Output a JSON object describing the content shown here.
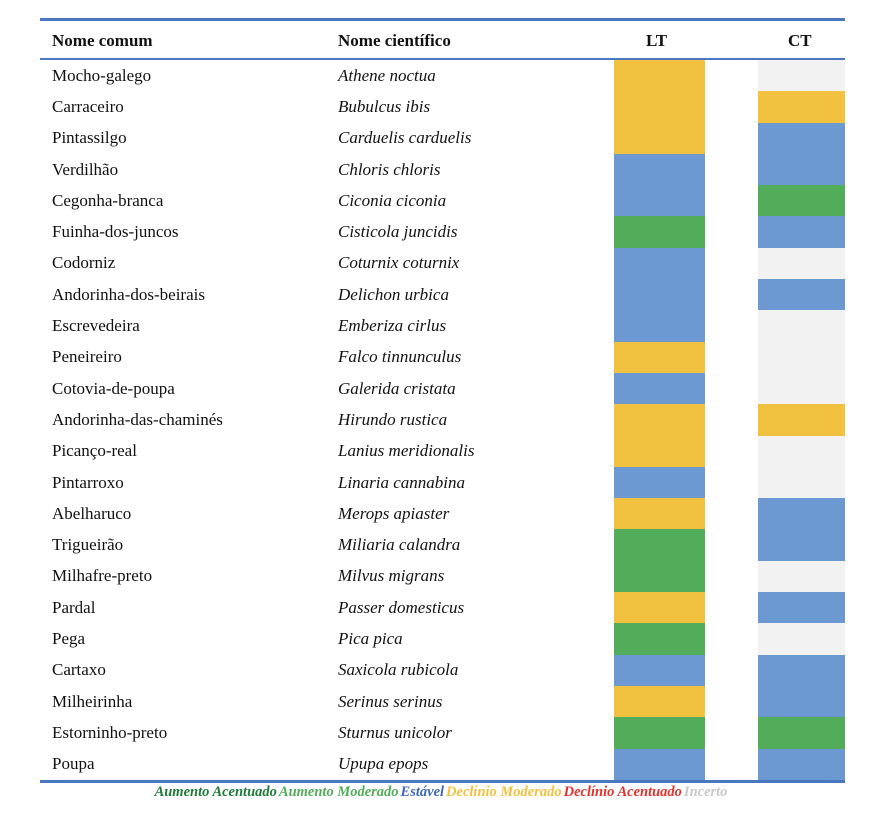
{
  "table": {
    "headers": {
      "common": "Nome comum",
      "scientific": "Nome científico",
      "lt": "LT",
      "ct": "CT"
    },
    "rows": [
      {
        "common": "Mocho-galego",
        "scientific": "Athene noctua",
        "lt": "Declínio Moderado",
        "ct": "Incerto"
      },
      {
        "common": "Carraceiro",
        "scientific": "Bubulcus ibis",
        "lt": "Declínio Moderado",
        "ct": "Declínio Moderado"
      },
      {
        "common": "Pintassilgo",
        "scientific": "Carduelis carduelis",
        "lt": "Declínio Moderado",
        "ct": "Estável"
      },
      {
        "common": "Verdilhão",
        "scientific": "Chloris chloris",
        "lt": "Estável",
        "ct": "Estável"
      },
      {
        "common": "Cegonha-branca",
        "scientific": "Ciconia ciconia",
        "lt": "Estável",
        "ct": "Aumento Moderado"
      },
      {
        "common": "Fuinha-dos-juncos",
        "scientific": "Cisticola juncidis",
        "lt": "Aumento Moderado",
        "ct": "Estável"
      },
      {
        "common": "Codorniz",
        "scientific": "Coturnix coturnix",
        "lt": "Estável",
        "ct": "Incerto"
      },
      {
        "common": "Andorinha-dos-beirais",
        "scientific": "Delichon urbica",
        "lt": "Estável",
        "ct": "Estável"
      },
      {
        "common": "Escrevedeira",
        "scientific": "Emberiza cirlus",
        "lt": "Estável",
        "ct": "Incerto"
      },
      {
        "common": "Peneireiro",
        "scientific": "Falco tinnunculus",
        "lt": "Declínio Moderado",
        "ct": "Incerto"
      },
      {
        "common": "Cotovia-de-poupa",
        "scientific": "Galerida cristata",
        "lt": "Estável",
        "ct": "Incerto"
      },
      {
        "common": "Andorinha-das-chaminés",
        "scientific": "Hirundo rustica",
        "lt": "Declínio Moderado",
        "ct": "Declínio Moderado"
      },
      {
        "common": "Picanço-real",
        "scientific": "Lanius meridionalis",
        "lt": "Declínio Moderado",
        "ct": "Incerto"
      },
      {
        "common": "Pintarroxo",
        "scientific": "Linaria cannabina",
        "lt": "Estável",
        "ct": "Incerto"
      },
      {
        "common": "Abelharuco",
        "scientific": "Merops apiaster",
        "lt": "Declínio Moderado",
        "ct": "Estável"
      },
      {
        "common": "Trigueirão",
        "scientific": "Miliaria calandra",
        "lt": "Aumento Moderado",
        "ct": "Estável"
      },
      {
        "common": "Milhafre-preto",
        "scientific": "Milvus migrans",
        "lt": "Aumento Moderado",
        "ct": "Incerto"
      },
      {
        "common": "Pardal",
        "scientific": "Passer domesticus",
        "lt": "Declínio Moderado",
        "ct": "Estável"
      },
      {
        "common": "Pega",
        "scientific": "Pica pica",
        "lt": "Aumento Moderado",
        "ct": "Incerto"
      },
      {
        "common": "Cartaxo",
        "scientific": "Saxicola rubicola",
        "lt": "Estável",
        "ct": "Estável"
      },
      {
        "common": "Milheirinha",
        "scientific": "Serinus serinus",
        "lt": "Declínio Moderado",
        "ct": "Estável"
      },
      {
        "common": "Estorninho-preto",
        "scientific": "Sturnus unicolor",
        "lt": "Aumento Moderado",
        "ct": "Aumento Moderado"
      },
      {
        "common": "Poupa",
        "scientific": "Upupa epops",
        "lt": "Estável",
        "ct": "Estável"
      }
    ]
  },
  "legend": [
    {
      "label": "Aumento Acentuado",
      "color": "#1f7a3a"
    },
    {
      "label": "Aumento Moderado",
      "color": "#52ad5a"
    },
    {
      "label": "Estável",
      "color": "#3e69b3"
    },
    {
      "label": "Declínio Moderado",
      "color": "#f3c140"
    },
    {
      "label": "Declínio Acentuado",
      "color": "#e2322b"
    },
    {
      "label": "Incerto",
      "color": "#c8c8c8"
    }
  ],
  "status_fill_colors": {
    "Aumento Acentuado": "#1f7a3a",
    "Aumento Moderado": "#52ad5a",
    "Estável": "#6d99d2",
    "Declínio Moderado": "#f3c140",
    "Declínio Acentuado": "#e2322b",
    "Incerto": "#f2f2f2"
  }
}
